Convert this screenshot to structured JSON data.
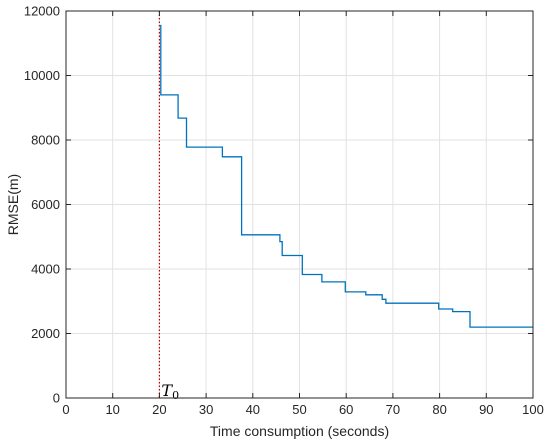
{
  "chart_data": {
    "type": "line",
    "title": "",
    "xlabel": "Time consumption (seconds)",
    "ylabel": "RMSE(m)",
    "xlim": [
      0,
      100
    ],
    "ylim": [
      0,
      12000
    ],
    "xticks": [
      0,
      10,
      20,
      30,
      40,
      50,
      60,
      70,
      80,
      90,
      100
    ],
    "yticks": [
      0,
      2000,
      4000,
      6000,
      8000,
      10000,
      12000
    ],
    "xtick_labels": [
      "0",
      "10",
      "20",
      "30",
      "40",
      "50",
      "60",
      "70",
      "80",
      "90",
      "100"
    ],
    "ytick_labels": [
      "0",
      "2000",
      "4000",
      "6000",
      "8000",
      "10000",
      "12000"
    ],
    "grid": true,
    "series": [
      {
        "color": "#0072BD",
        "step": true,
        "x": [
          20,
          20.3,
          20.3,
          24,
          24,
          25.8,
          25.8,
          33.5,
          33.5,
          37.6,
          37.6,
          45.8,
          45.8,
          46.3,
          46.3,
          50.6,
          50.6,
          54.8,
          54.8,
          59.8,
          59.8,
          64.2,
          64.2,
          67.7,
          67.7,
          68.5,
          68.5,
          79.8,
          79.8,
          82.8,
          82.8,
          86.5,
          86.5,
          100
        ],
        "y": [
          11550,
          11550,
          9400,
          9400,
          8680,
          8680,
          7780,
          7780,
          7480,
          7480,
          5060,
          5060,
          4850,
          4850,
          4420,
          4420,
          3830,
          3830,
          3600,
          3600,
          3290,
          3290,
          3200,
          3200,
          3060,
          3060,
          2940,
          2940,
          2760,
          2760,
          2680,
          2680,
          2200,
          2200
        ]
      }
    ],
    "annotations": [
      {
        "type": "vline",
        "x": 20,
        "color": "#CC0000",
        "style": "dotted",
        "label": "T",
        "label_subscript": "0"
      }
    ]
  }
}
